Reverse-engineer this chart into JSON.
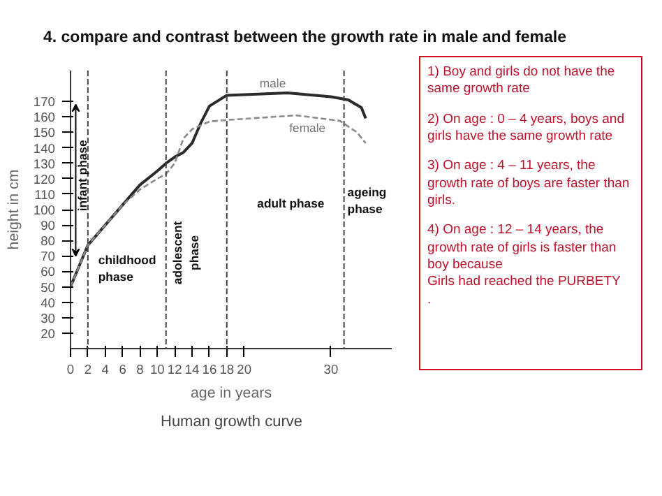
{
  "chart_data": {
    "type": "line",
    "title": "4.  compare and contrast between the growth rate in male and female",
    "xlabel": "age in years",
    "ylabel": "height in cm",
    "xlim": [
      0,
      37
    ],
    "ylim": [
      10,
      190
    ],
    "xticks": [
      0,
      2,
      4,
      6,
      8,
      10,
      12,
      14,
      16,
      18,
      20,
      30
    ],
    "yticks": [
      20,
      30,
      40,
      50,
      60,
      70,
      80,
      90,
      100,
      110,
      120,
      130,
      140,
      150,
      160,
      170
    ],
    "grid": false,
    "marker": "none",
    "series": [
      {
        "name": "male",
        "color": "#2b2b2b",
        "line_style": "solid",
        "x": [
          0,
          2,
          4,
          6,
          8,
          10,
          11,
          12,
          13,
          14,
          15,
          16,
          18,
          25,
          30,
          32,
          33.5,
          34
        ],
        "values": [
          50,
          77,
          90,
          103,
          116,
          125,
          130,
          134,
          137,
          143,
          156,
          167,
          174,
          175.5,
          173,
          171,
          166,
          159
        ]
      },
      {
        "name": "female",
        "color": "#8a8a8a",
        "line_style": "dashed",
        "x": [
          0,
          2,
          4,
          6,
          8,
          10,
          11,
          12,
          13,
          14,
          16,
          18,
          26,
          31,
          33,
          34
        ],
        "values": [
          50,
          77,
          90,
          103,
          113,
          120,
          123,
          130,
          146,
          152,
          157,
          158,
          161,
          157.5,
          150,
          143
        ]
      }
    ],
    "ref_lines": [
      {
        "axis": "x",
        "value": 2,
        "color": "#444444",
        "line_style": "dashed"
      },
      {
        "axis": "x",
        "value": 11,
        "color": "#444444",
        "line_style": "dashed"
      },
      {
        "axis": "x",
        "value": 18,
        "color": "#444444",
        "line_style": "dashed"
      },
      {
        "axis": "x",
        "value": 31.5,
        "color": "#444444",
        "line_style": "dashed"
      }
    ],
    "annotations": [
      "infant phase",
      "childhood\nphase",
      "adolescent\nphase",
      "adult phase",
      "ageing\nphase",
      "Human growth curve",
      "1) Boy and girls do not have the same growth rate",
      "2) On age : 0 – 4 years, boys and girls have the same growth rate",
      "3)  On age : 4 – 11 years, the growth rate of boys are faster than girls.",
      "4)  On age : 12 – 14 years, the growth rate of girls is faster than boy because\nGirls had reached the PURBETY\n."
    ]
  }
}
